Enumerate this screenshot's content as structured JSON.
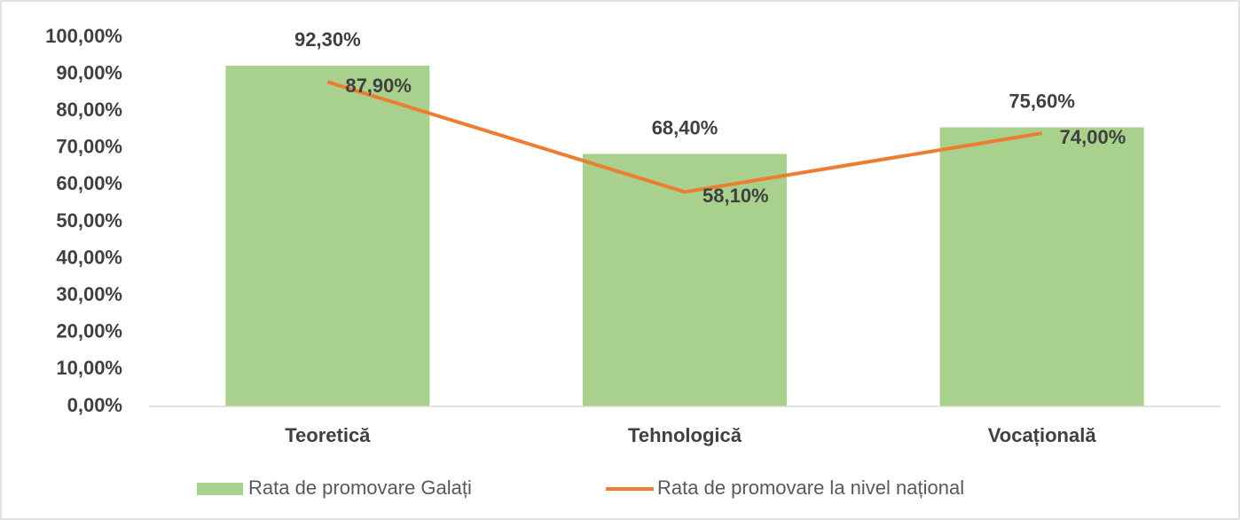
{
  "chart_data": {
    "type": "bar",
    "categories": [
      "Teoretică",
      "Tehnologică",
      "Vocațională"
    ],
    "series": [
      {
        "name": "Rata de promovare Galați",
        "type": "bar",
        "color": "#a9d18e",
        "values": [
          92.3,
          68.4,
          75.6
        ],
        "value_labels": [
          "92,30%",
          "68,40%",
          "75,60%"
        ]
      },
      {
        "name": "Rata de promovare la nivel național",
        "type": "line",
        "color": "#ed7d31",
        "values": [
          87.9,
          58.1,
          74.0
        ],
        "value_labels": [
          "87,90%",
          "58,10%",
          "74,00%"
        ]
      }
    ],
    "ylim": [
      0,
      100
    ],
    "yticks": [
      {
        "value": 0,
        "label": "0,00%"
      },
      {
        "value": 10,
        "label": "10,00%"
      },
      {
        "value": 20,
        "label": "20,00%"
      },
      {
        "value": 30,
        "label": "30,00%"
      },
      {
        "value": 40,
        "label": "40,00%"
      },
      {
        "value": 50,
        "label": "50,00%"
      },
      {
        "value": 60,
        "label": "60,00%"
      },
      {
        "value": 70,
        "label": "70,00%"
      },
      {
        "value": 80,
        "label": "80,00%"
      },
      {
        "value": 90,
        "label": "90,00%"
      },
      {
        "value": 100,
        "label": "100,00%"
      }
    ],
    "grid": false,
    "legend": "bottom"
  }
}
